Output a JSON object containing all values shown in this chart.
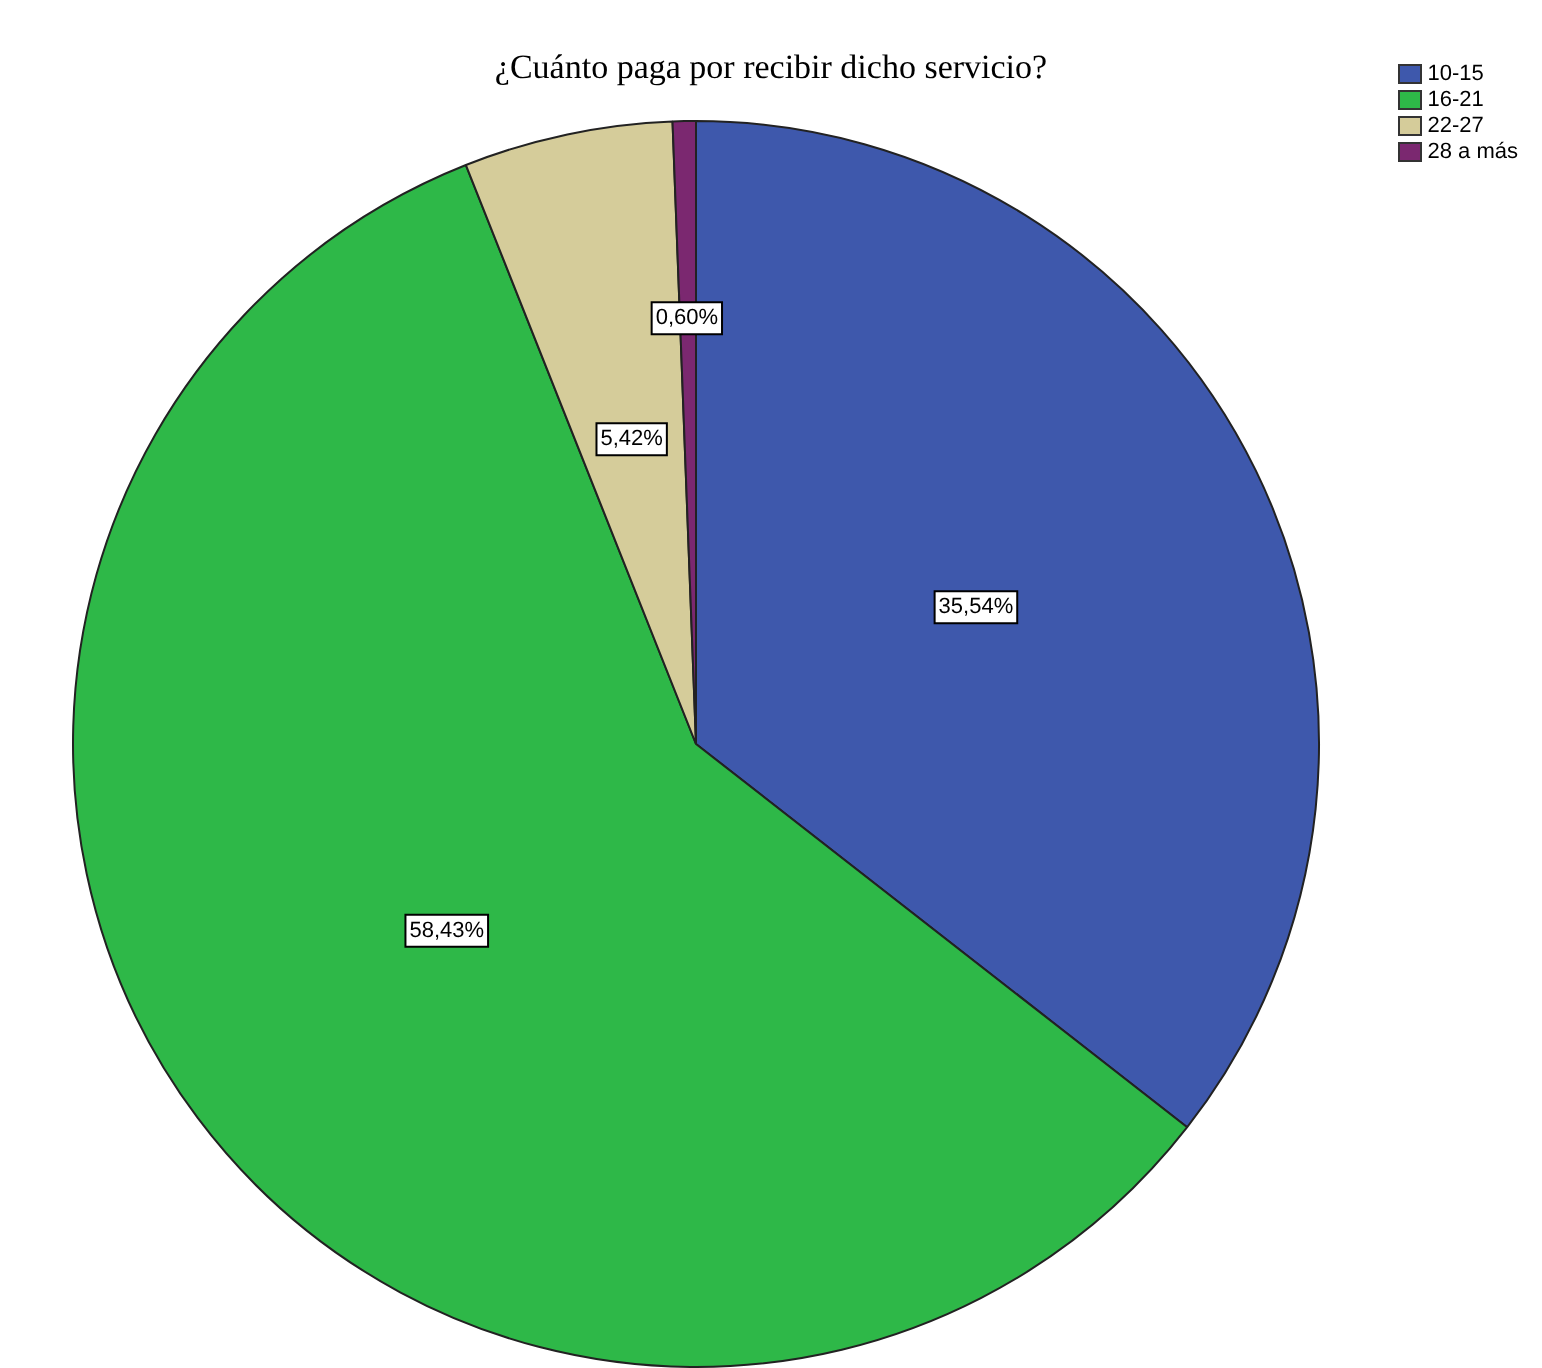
{
  "chart_data": {
    "type": "pie",
    "title": "¿Cuánto paga por recibir dicho servicio?",
    "categories": [
      "10-15",
      "16-21",
      "22-27",
      "28 a más"
    ],
    "values": [
      35.54,
      58.43,
      5.42,
      0.6
    ],
    "colors": [
      "#3e58ac",
      "#2eb848",
      "#d5cc9a",
      "#7b2870"
    ],
    "value_labels": [
      "35,54%",
      "58,43%",
      "5,42%",
      "0,60%"
    ],
    "legend": "top right"
  }
}
